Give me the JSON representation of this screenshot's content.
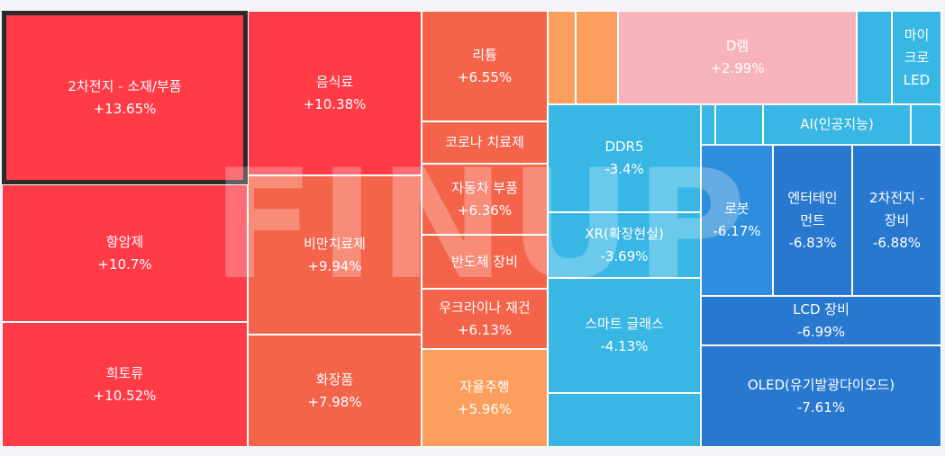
{
  "watermark": "FINUP",
  "colors": {
    "up_strong": "#ff3b47",
    "up_mid": "#f4644b",
    "up_light": "#fc9f5e",
    "flat_pink": "#f7b3ba",
    "down_light": "#38b6e4",
    "down_mid": "#2e8ddc",
    "down_strong": "#2878cf"
  },
  "tiles": [
    {
      "label": "2차전지 - 소재/부품",
      "change": "+13.65%",
      "tone": "up_strong",
      "selected": true
    },
    {
      "label": "항암제",
      "change": "+10.7%",
      "tone": "up_strong"
    },
    {
      "label": "희토류",
      "change": "+10.52%",
      "tone": "up_strong"
    },
    {
      "label": "음식료",
      "change": "+10.38%",
      "tone": "up_strong"
    },
    {
      "label": "비만치료제",
      "change": "+9.94%",
      "tone": "up_mid"
    },
    {
      "label": "화장품",
      "change": "+7.98%",
      "tone": "up_mid"
    },
    {
      "label": "리튬",
      "change": "+6.55%",
      "tone": "up_mid"
    },
    {
      "label": "코로나 치료제",
      "change": "",
      "tone": "up_mid"
    },
    {
      "label": "자동차 부품",
      "change": "+6.36%",
      "tone": "up_mid"
    },
    {
      "label": "반도체 장비",
      "change": "",
      "tone": "up_mid"
    },
    {
      "label": "우크라이나 재건",
      "change": "+6.13%",
      "tone": "up_mid"
    },
    {
      "label": "자율주행",
      "change": "+5.96%",
      "tone": "up_light"
    },
    {
      "label": "",
      "change": "",
      "tone": "up_light"
    },
    {
      "label": "",
      "change": "",
      "tone": "up_light"
    },
    {
      "label": "D램",
      "change": "+2.99%",
      "tone": "flat_pink"
    },
    {
      "label": "",
      "change": "",
      "tone": "down_light"
    },
    {
      "label": "마이\n크로\nLED",
      "change": "",
      "tone": "down_light"
    },
    {
      "label": "DDR5",
      "change": "-3.4%",
      "tone": "down_light"
    },
    {
      "label": "XR(확장현실)",
      "change": "-3.69%",
      "tone": "down_light"
    },
    {
      "label": "스마트 글래스",
      "change": "-4.13%",
      "tone": "down_light"
    },
    {
      "label": "",
      "change": "",
      "tone": "down_light"
    },
    {
      "label": "",
      "change": "",
      "tone": "down_light"
    },
    {
      "label": "",
      "change": "",
      "tone": "down_light"
    },
    {
      "label": "AI(인공지능)",
      "change": "",
      "tone": "down_light"
    },
    {
      "label": "",
      "change": "",
      "tone": "down_light"
    },
    {
      "label": "로봇",
      "change": "-6.17%",
      "tone": "down_mid"
    },
    {
      "label": "엔터테인\n먼트",
      "change": "-6.83%",
      "tone": "down_strong"
    },
    {
      "label": "2차전지 -\n장비",
      "change": "-6.88%",
      "tone": "down_strong"
    },
    {
      "label": "LCD 장비",
      "change": "-6.99%",
      "tone": "down_strong"
    },
    {
      "label": "OLED(유기발광다이오드)",
      "change": "-7.61%",
      "tone": "down_strong"
    }
  ]
}
